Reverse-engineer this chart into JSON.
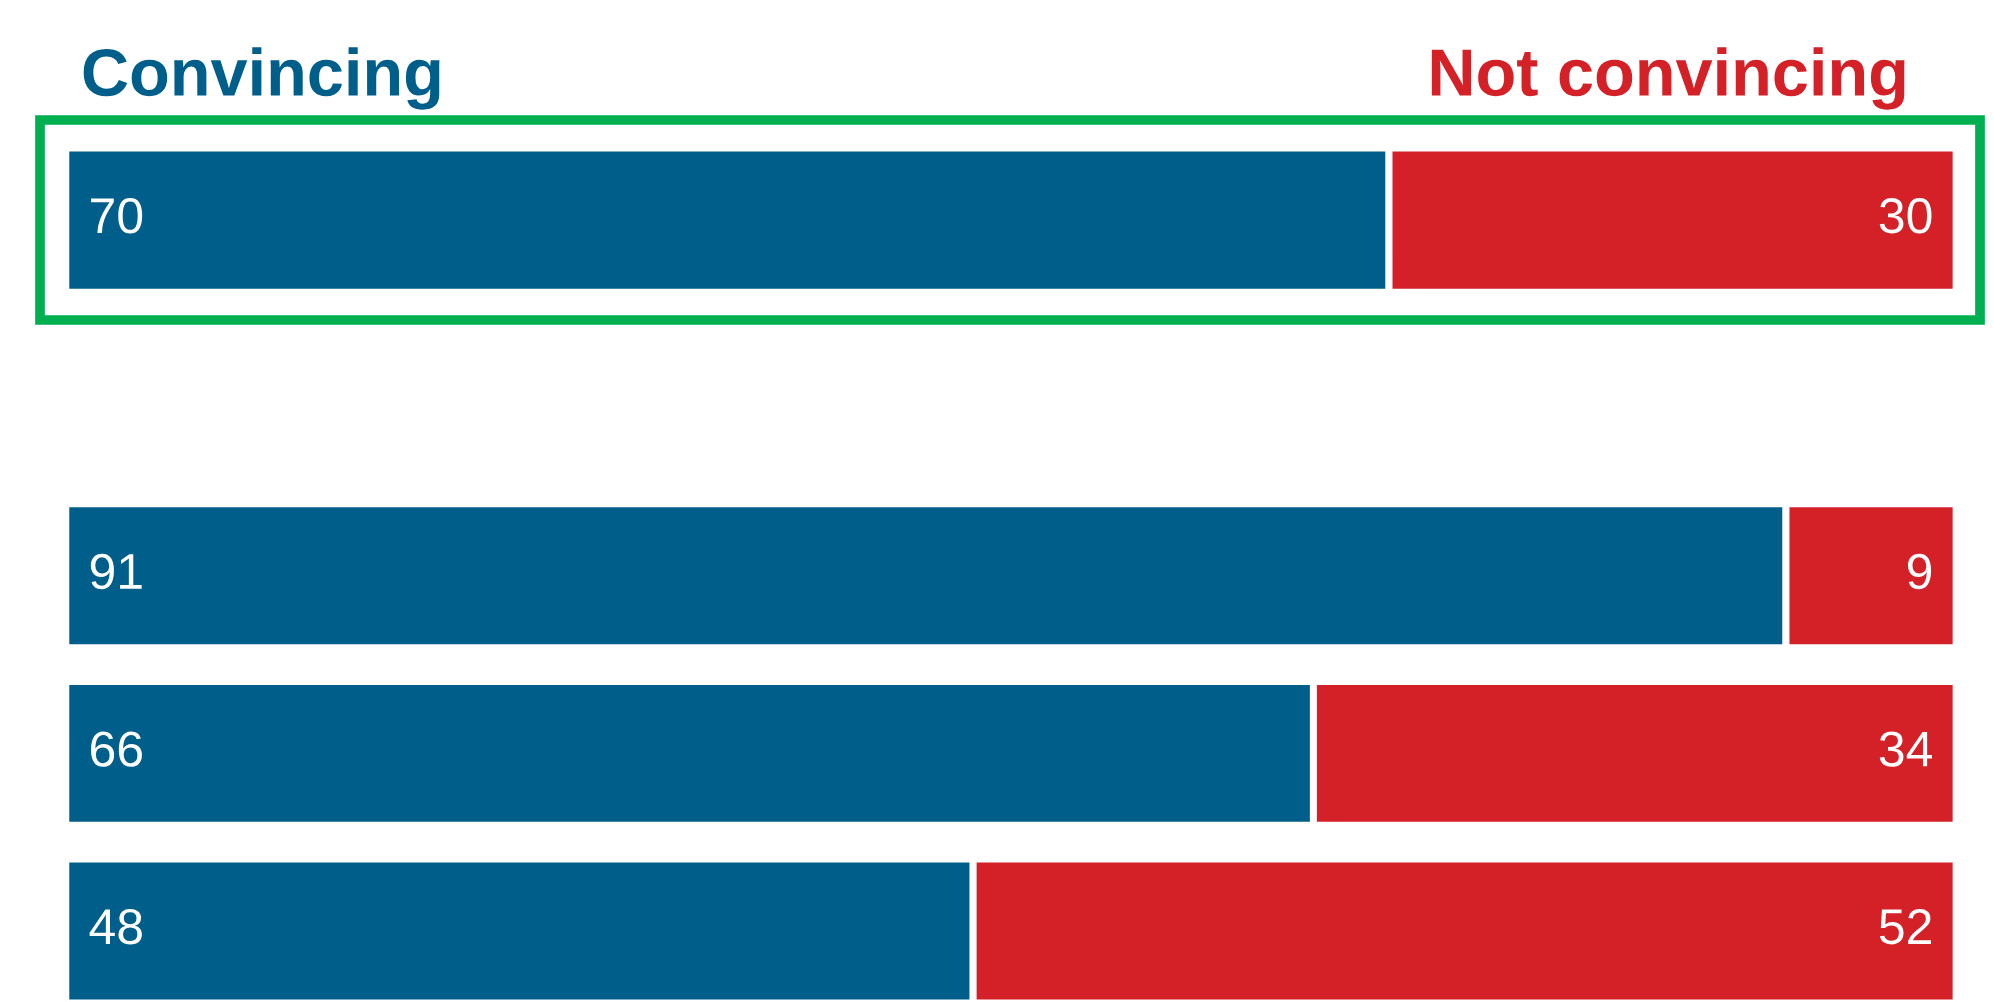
{
  "chart_data": [
    {
      "type": "bar",
      "orientation": "horizontal",
      "stacked": true,
      "categories": [
        null
      ],
      "series": [
        {
          "name": "Convincing",
          "color": "#005f8a",
          "values": [
            70
          ]
        },
        {
          "name": "Not convincing",
          "color": "#d42127",
          "values": [
            30
          ]
        }
      ],
      "data_labels": true,
      "tick_labels": false
    },
    {
      "type": "bar",
      "orientation": "horizontal",
      "stacked": true,
      "categories": [
        null,
        null,
        null
      ],
      "series": [
        {
          "color": "#005f8a",
          "values": [
            91,
            66,
            48
          ]
        },
        {
          "color": "#d42127",
          "values": [
            9,
            34,
            52
          ]
        }
      ],
      "data_labels": true,
      "tick_labels": false
    }
  ]
}
